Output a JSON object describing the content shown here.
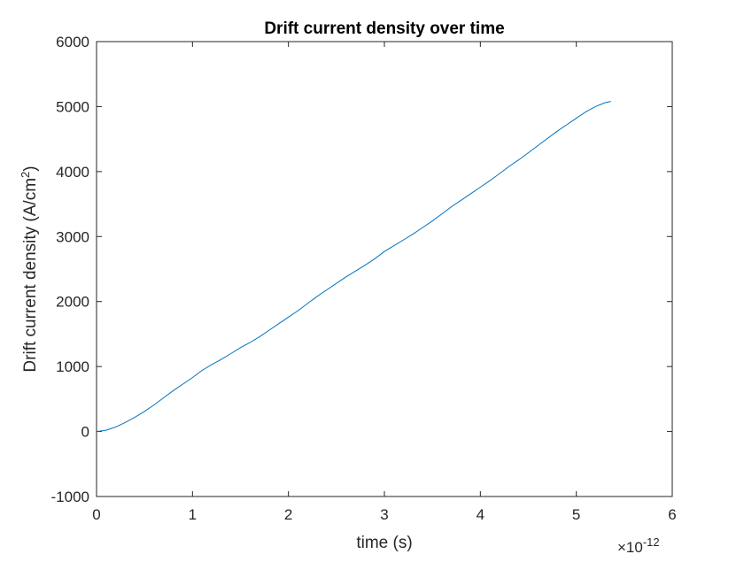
{
  "chart_data": {
    "type": "line",
    "title": "Drift current density over time",
    "xlabel": "time (s)",
    "ylabel": "Drift current density (A/cm",
    "ylabel_sup": "2",
    "ylabel_close": ")",
    "x_exponent_base": "×10",
    "x_exponent_power": "-12",
    "xlim": [
      0,
      6
    ],
    "ylim": [
      -1000,
      6000
    ],
    "x_ticks": [
      0,
      1,
      2,
      3,
      4,
      5,
      6
    ],
    "y_ticks": [
      -1000,
      0,
      1000,
      2000,
      3000,
      4000,
      5000,
      6000
    ],
    "x_tick_labels": [
      "0",
      "1",
      "2",
      "3",
      "4",
      "5",
      "6"
    ],
    "y_tick_labels": [
      "-1000",
      "0",
      "1000",
      "2000",
      "3000",
      "4000",
      "5000",
      "6000"
    ],
    "grid": false,
    "line_color": "#0072BD",
    "axis_color": "#262626",
    "series": [
      {
        "x": [
          0,
          0.1,
          0.2,
          0.3,
          0.4,
          0.5,
          0.6,
          0.7,
          0.8,
          0.9,
          1.0,
          1.1,
          1.2,
          1.3,
          1.4,
          1.5,
          1.6,
          1.7,
          1.8,
          1.9,
          2.0,
          2.1,
          2.2,
          2.3,
          2.4,
          2.5,
          2.6,
          2.7,
          2.8,
          2.9,
          3.0,
          3.1,
          3.2,
          3.3,
          3.4,
          3.5,
          3.6,
          3.7,
          3.8,
          3.9,
          4.0,
          4.1,
          4.2,
          4.3,
          4.4,
          4.5,
          4.6,
          4.7,
          4.8,
          4.9,
          5.0,
          5.1,
          5.2,
          5.3,
          5.36
        ],
        "y": [
          0,
          20,
          70,
          140,
          220,
          310,
          410,
          520,
          630,
          730,
          830,
          940,
          1030,
          1110,
          1200,
          1290,
          1370,
          1460,
          1560,
          1660,
          1760,
          1860,
          1970,
          2080,
          2180,
          2280,
          2380,
          2470,
          2560,
          2660,
          2770,
          2860,
          2950,
          3040,
          3140,
          3240,
          3350,
          3460,
          3560,
          3660,
          3760,
          3860,
          3970,
          4080,
          4180,
          4290,
          4400,
          4510,
          4620,
          4720,
          4820,
          4920,
          5000,
          5060,
          5080
        ]
      }
    ]
  }
}
